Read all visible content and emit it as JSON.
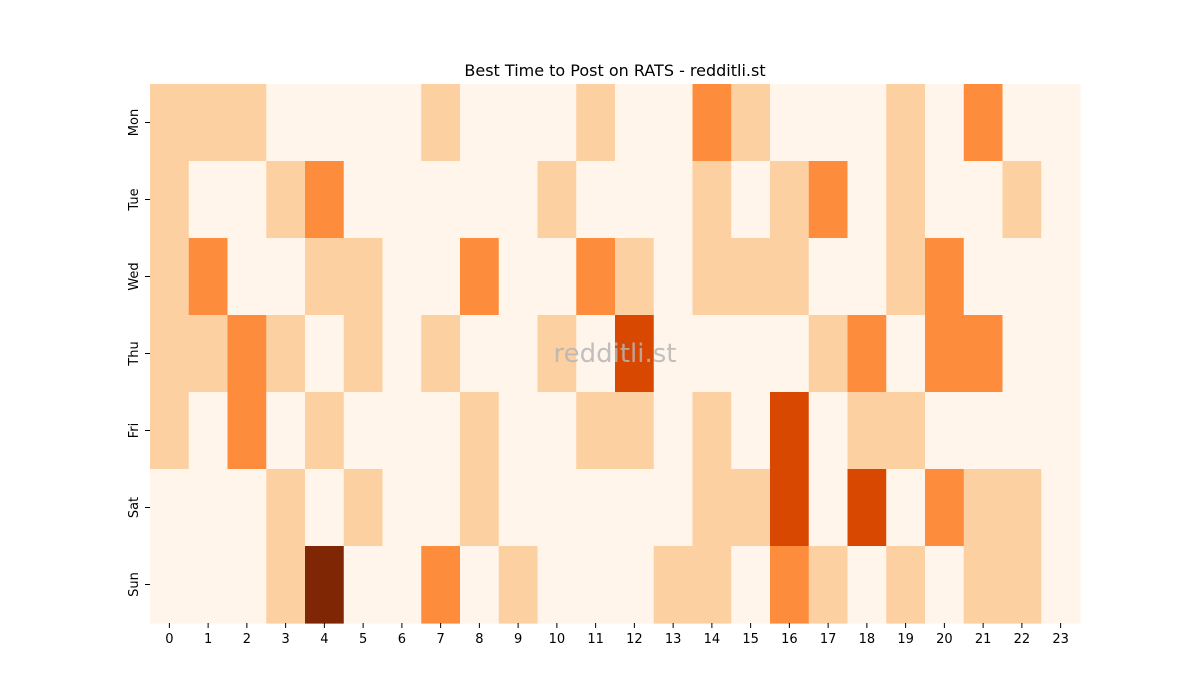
{
  "chart_data": {
    "type": "heatmap",
    "title": "Best Time to Post on RATS - redditli.st",
    "watermark": "redditli.st",
    "xlabel": "",
    "ylabel": "",
    "x_categories": [
      "0",
      "1",
      "2",
      "3",
      "4",
      "5",
      "6",
      "7",
      "8",
      "9",
      "10",
      "11",
      "12",
      "13",
      "14",
      "15",
      "16",
      "17",
      "18",
      "19",
      "20",
      "21",
      "22",
      "23"
    ],
    "y_categories": [
      "Mon",
      "Tue",
      "Wed",
      "Thu",
      "Fri",
      "Sat",
      "Sun"
    ],
    "values": [
      [
        1,
        1,
        1,
        0,
        0,
        0,
        0,
        1,
        0,
        0,
        0,
        1,
        0,
        0,
        2,
        1,
        0,
        0,
        0,
        1,
        0,
        2,
        0,
        0
      ],
      [
        1,
        0,
        0,
        1,
        2,
        0,
        0,
        0,
        0,
        0,
        1,
        0,
        0,
        0,
        1,
        0,
        1,
        2,
        0,
        1,
        0,
        0,
        1,
        0
      ],
      [
        1,
        2,
        0,
        0,
        1,
        1,
        0,
        0,
        2,
        0,
        0,
        2,
        1,
        0,
        1,
        1,
        1,
        0,
        0,
        1,
        2,
        0,
        0,
        0
      ],
      [
        1,
        1,
        2,
        1,
        0,
        1,
        0,
        1,
        0,
        0,
        1,
        0,
        3,
        0,
        0,
        0,
        0,
        1,
        2,
        0,
        2,
        2,
        0,
        0
      ],
      [
        1,
        0,
        2,
        0,
        1,
        0,
        0,
        0,
        1,
        0,
        0,
        1,
        1,
        0,
        1,
        0,
        3,
        0,
        1,
        1,
        0,
        0,
        0,
        0
      ],
      [
        0,
        0,
        0,
        1,
        0,
        1,
        0,
        0,
        1,
        0,
        0,
        0,
        0,
        0,
        1,
        1,
        3,
        0,
        3,
        0,
        2,
        1,
        1,
        0
      ],
      [
        0,
        0,
        0,
        1,
        4,
        0,
        0,
        2,
        0,
        1,
        0,
        0,
        0,
        1,
        1,
        0,
        2,
        1,
        0,
        1,
        0,
        1,
        1,
        0
      ]
    ],
    "value_range": [
      0,
      4
    ],
    "colorscale": [
      "#fff5eb",
      "#fdd0a2",
      "#fd8d3c",
      "#d94801",
      "#7f2704"
    ],
    "colorbar": false,
    "grid": false
  }
}
